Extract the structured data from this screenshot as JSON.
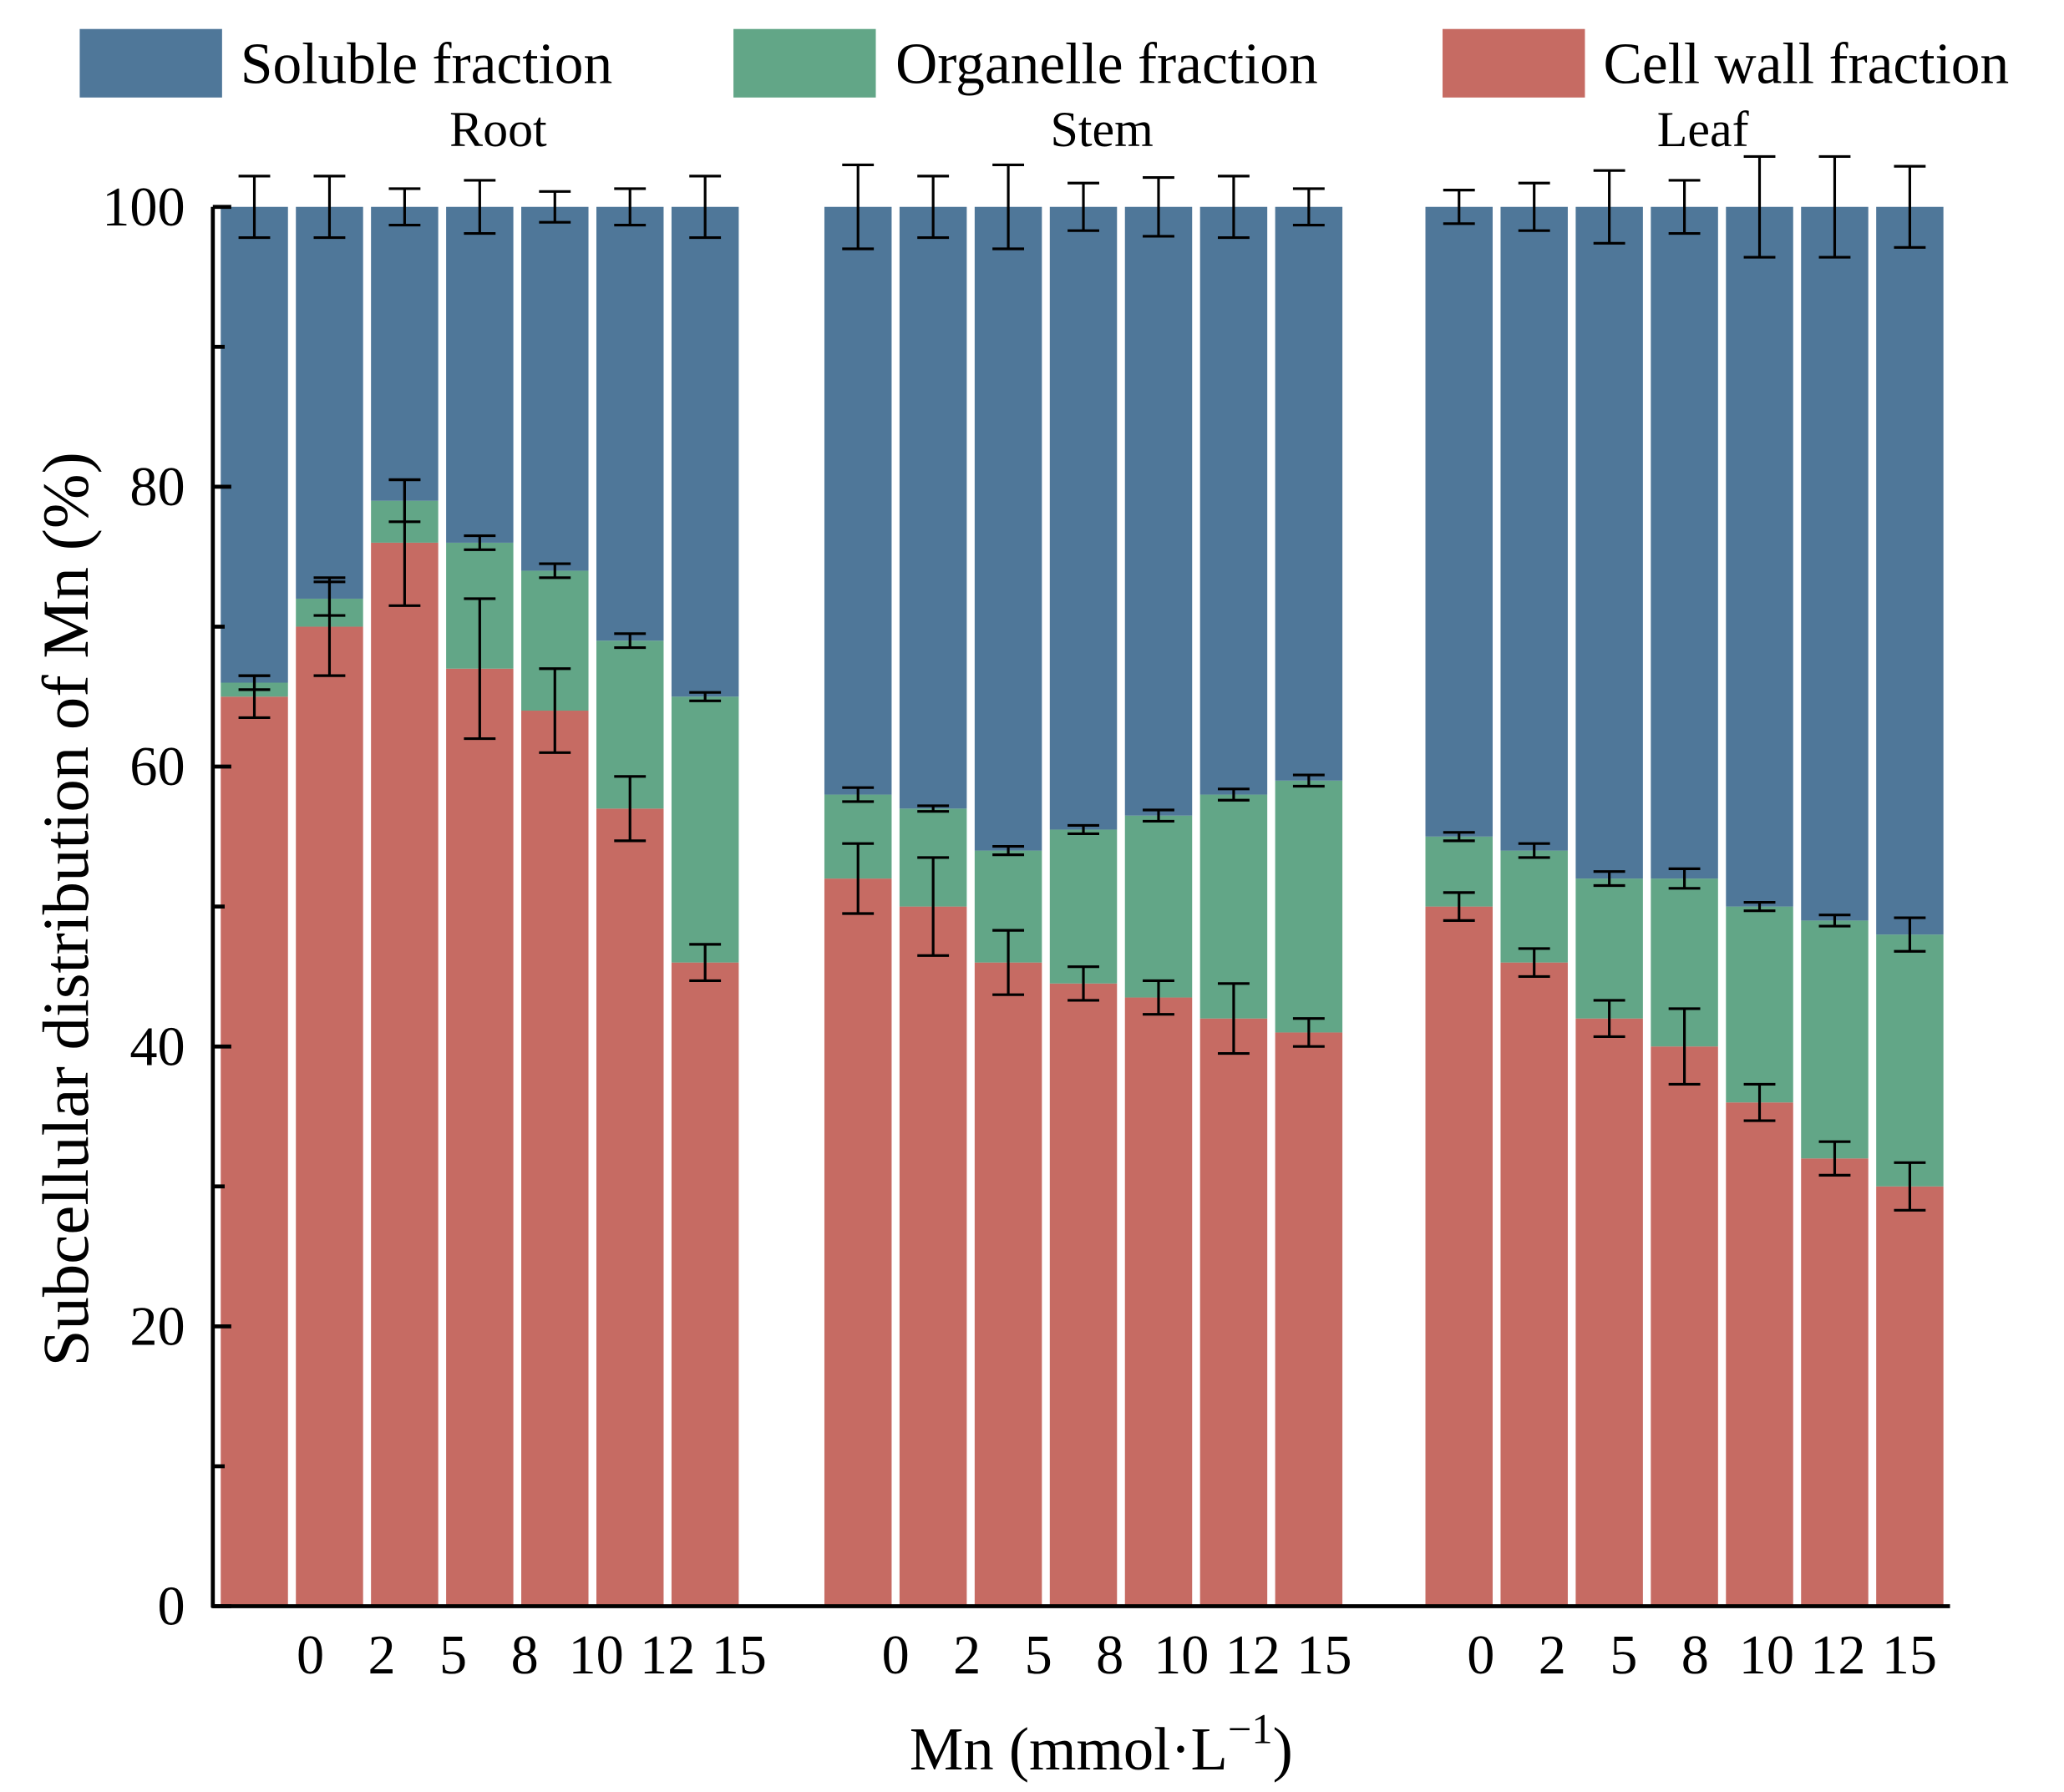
{
  "chart_data": {
    "type": "bar",
    "stacked": true,
    "legend": [
      {
        "name": "Soluble fraction",
        "color": "#4f7799"
      },
      {
        "name": "Organelle fraction",
        "color": "#62a687"
      },
      {
        "name": "Cell wall fraction",
        "color": "#c66b63"
      }
    ],
    "legend_placement": "top",
    "ylabel": "Subcellular distribution of Mn (%)",
    "xlabel": "Mn (mmol·L",
    "xlabel_sup": "−1",
    "xlabel_close": ")",
    "ylim": [
      0,
      100
    ],
    "yticks": [
      "0",
      "20",
      "40",
      "60",
      "80",
      "100"
    ],
    "categories": [
      "0",
      "2",
      "5",
      "8",
      "10",
      "12",
      "15"
    ],
    "groups": [
      {
        "name": "Root",
        "cell_wall": [
          65,
          70,
          76,
          67,
          64,
          57,
          46
        ],
        "organelle": [
          1,
          2,
          3,
          9,
          10,
          12,
          19
        ],
        "soluble": [
          34,
          28,
          21,
          24,
          26,
          31,
          35
        ],
        "cell_wall_err": [
          1.5,
          3.5,
          4.5,
          5,
          3,
          2.3,
          1.3
        ],
        "organelle_err": [
          0.5,
          1.2,
          1.5,
          0.5,
          0.5,
          0.5,
          0.3
        ],
        "soluble_err": [
          2.2,
          2.2,
          1.3,
          1.9,
          1.1,
          1.3,
          2.2
        ]
      },
      {
        "name": "Stem",
        "cell_wall": [
          52,
          50,
          46,
          44.5,
          43.5,
          42,
          41
        ],
        "organelle": [
          6,
          7,
          8,
          11,
          13,
          16,
          18
        ],
        "soluble": [
          42,
          43,
          46,
          44.5,
          43.5,
          42,
          41
        ],
        "cell_wall_err": [
          2.5,
          3.5,
          2.3,
          1.2,
          1.2,
          2.5,
          1
        ],
        "organelle_err": [
          0.5,
          0.2,
          0.3,
          0.3,
          0.4,
          0.4,
          0.4
        ],
        "soluble_err": [
          3,
          2.2,
          3,
          1.7,
          2.1,
          2.2,
          1.3
        ]
      },
      {
        "name": "Leaf",
        "cell_wall": [
          50,
          46,
          42,
          40,
          36,
          32,
          30
        ],
        "organelle": [
          5,
          8,
          10,
          12,
          14,
          17,
          18
        ],
        "soluble": [
          45,
          46,
          48,
          48,
          50,
          51,
          52
        ],
        "cell_wall_err": [
          1,
          1,
          1.3,
          2.7,
          1.3,
          1.2,
          1.7
        ],
        "organelle_err": [
          0.3,
          0.5,
          0.5,
          0.7,
          0.3,
          0.4,
          1.2
        ],
        "soluble_err": [
          1.2,
          1.7,
          2.6,
          1.9,
          3.6,
          3.6,
          2.9
        ]
      }
    ]
  }
}
